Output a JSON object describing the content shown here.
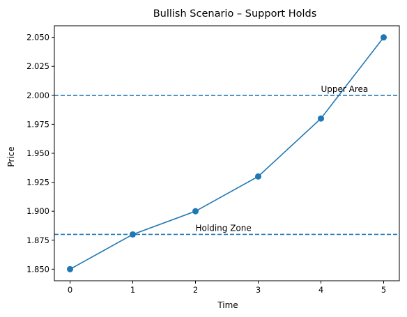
{
  "chart_data": {
    "type": "line",
    "title": "Bullish Scenario – Support Holds",
    "xlabel": "Time",
    "ylabel": "Price",
    "x": [
      0,
      1,
      2,
      3,
      4,
      5
    ],
    "series": [
      {
        "values": [
          1.85,
          1.88,
          1.9,
          1.93,
          1.98,
          2.05
        ],
        "color": "#1f77b4",
        "marker": "circle"
      }
    ],
    "xlim": [
      -0.25,
      5.25
    ],
    "ylim": [
      1.84,
      2.06
    ],
    "x_ticks": [
      "0",
      "1",
      "2",
      "3",
      "4",
      "5"
    ],
    "y_ticks": [
      "1.850",
      "1.875",
      "1.900",
      "1.925",
      "1.950",
      "1.975",
      "2.000",
      "2.025",
      "2.050"
    ],
    "hlines": [
      {
        "y": 2.0,
        "style": "dashed",
        "color": "#1f77b4"
      },
      {
        "y": 1.88,
        "style": "dashed",
        "color": "#1f77b4"
      }
    ],
    "annotations": [
      {
        "text": "Upper Area",
        "x": 4,
        "y": 2.003
      },
      {
        "text": "Holding Zone",
        "x": 2,
        "y": 1.883
      }
    ],
    "grid": false,
    "legend": "none"
  }
}
